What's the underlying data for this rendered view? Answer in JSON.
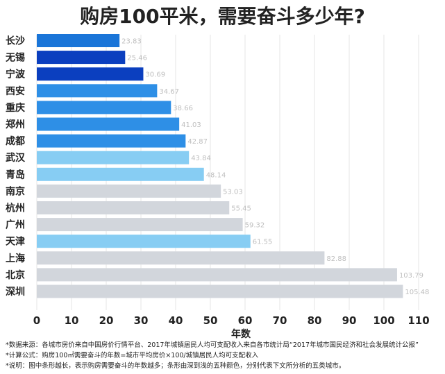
{
  "chart_data": {
    "type": "bar",
    "orientation": "horizontal",
    "title": "购房100平米，需要奋斗多少年?",
    "xlabel": "年数",
    "ylabel": "",
    "xlim": [
      0,
      115
    ],
    "x_ticks": [
      "0",
      "10",
      "20",
      "30",
      "40",
      "50",
      "60",
      "70",
      "80",
      "90",
      "100",
      "110"
    ],
    "grid": "vertical",
    "categories": [
      "长沙",
      "无锡",
      "宁波",
      "西安",
      "重庆",
      "郑州",
      "成都",
      "武汉",
      "青岛",
      "南京",
      "杭州",
      "广州",
      "天津",
      "上海",
      "北京",
      "深圳"
    ],
    "values": [
      23.83,
      25.46,
      30.69,
      34.67,
      38.66,
      41.03,
      42.87,
      43.84,
      48.14,
      53.03,
      55.45,
      59.32,
      61.55,
      82.88,
      103.79,
      105.48
    ],
    "data_labels": [
      "23.83",
      "25.46",
      "30.69",
      "34.67",
      "38.66",
      "41.03",
      "42.87",
      "43.84",
      "48.14",
      "53.03",
      "55.45",
      "59.32",
      "61.55",
      "82.88",
      "103.79",
      "105.48"
    ],
    "bar_colors": [
      "#1a75d8",
      "#0b3fbf",
      "#0b3fbf",
      "#2e8fe6",
      "#2e8fe6",
      "#2e8fe6",
      "#2e8fe6",
      "#87cdf3",
      "#87cdf3",
      "#d2d6dc",
      "#d2d6dc",
      "#d2d6dc",
      "#87cdf3",
      "#d2d6dc",
      "#d2d6dc",
      "#d2d6dc"
    ]
  },
  "notes": [
    "*数据来源：各城市房价来自中国房价行情平台、2017年城镇居民人均可支配收入来自各市统计局“2017年城市国民经济和社会发展统计公报”",
    "*计算公式：购房100㎡需要奋斗的年数=城市平均房价×100/城镇居民人均可支配收入",
    "*说明：图中条形越长，表示购房需要奋斗的年数越多；条形由深到浅的五种颜色，分别代表下文所分析的五类城市。"
  ],
  "colors": {
    "grid": "#e6e6e6",
    "category_text": "#222222",
    "value_label": "#bfbfbf",
    "tick_text": "#222222"
  }
}
